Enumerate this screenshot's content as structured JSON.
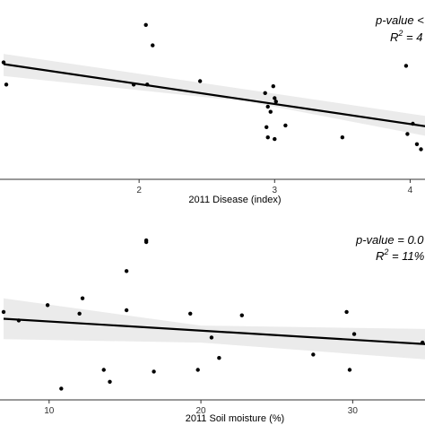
{
  "colors": {
    "points": "#000000",
    "fit_line": "#000000",
    "ci_band": "#ebebeb",
    "axis": "#333333"
  },
  "chart_data": [
    {
      "type": "scatter",
      "title": "",
      "xlabel": "2011 Disease (index)",
      "ylabel": "",
      "xlim": [
        1.0,
        4.5
      ],
      "ylim": [
        0.0,
        1.0
      ],
      "xticks": [
        2,
        3,
        4
      ],
      "xtick_labels": [
        "2",
        "3",
        "4"
      ],
      "annotation_pvalue": "p-value <",
      "annotation_r2_prefix": "R",
      "annotation_r2_sup": "2",
      "annotation_r2_suffix": " = 4",
      "points": [
        {
          "x": 1.0,
          "y": 0.66
        },
        {
          "x": 1.02,
          "y": 0.53
        },
        {
          "x": 1.96,
          "y": 0.53
        },
        {
          "x": 2.06,
          "y": 0.53
        },
        {
          "x": 2.05,
          "y": 0.88
        },
        {
          "x": 2.1,
          "y": 0.76
        },
        {
          "x": 2.45,
          "y": 0.55
        },
        {
          "x": 2.93,
          "y": 0.48
        },
        {
          "x": 2.95,
          "y": 0.4
        },
        {
          "x": 2.97,
          "y": 0.37
        },
        {
          "x": 2.99,
          "y": 0.52
        },
        {
          "x": 3.0,
          "y": 0.45
        },
        {
          "x": 3.01,
          "y": 0.43
        },
        {
          "x": 2.94,
          "y": 0.28
        },
        {
          "x": 2.95,
          "y": 0.22
        },
        {
          "x": 3.0,
          "y": 0.21
        },
        {
          "x": 3.08,
          "y": 0.29
        },
        {
          "x": 3.5,
          "y": 0.22
        },
        {
          "x": 3.97,
          "y": 0.64
        },
        {
          "x": 3.98,
          "y": 0.24
        },
        {
          "x": 4.02,
          "y": 0.3
        },
        {
          "x": 4.05,
          "y": 0.18
        },
        {
          "x": 4.08,
          "y": 0.15
        }
      ],
      "fit": {
        "x": [
          1.0,
          4.5
        ],
        "y": [
          0.65,
          0.24
        ]
      },
      "ci_band": {
        "x": [
          1.0,
          2.8,
          4.5
        ],
        "upper": [
          0.71,
          0.5,
          0.3
        ],
        "lower": [
          0.58,
          0.43,
          0.17
        ]
      }
    },
    {
      "type": "scatter",
      "title": "",
      "xlabel": "2011 Soil moisture (%)",
      "ylabel": "",
      "xlim": [
        7.0,
        35.0
      ],
      "ylim": [
        0.0,
        1.0
      ],
      "xticks": [
        10,
        20,
        30
      ],
      "xtick_labels": [
        "10",
        "20",
        "30"
      ],
      "annotation_pvalue": "p-value = 0.0",
      "annotation_r2_prefix": "R",
      "annotation_r2_sup": "2",
      "annotation_r2_suffix": " = 11%",
      "points": [
        {
          "x": 7.0,
          "y": 0.49
        },
        {
          "x": 8.0,
          "y": 0.44
        },
        {
          "x": 9.9,
          "y": 0.53
        },
        {
          "x": 10.8,
          "y": 0.04
        },
        {
          "x": 12.0,
          "y": 0.48
        },
        {
          "x": 12.2,
          "y": 0.57
        },
        {
          "x": 13.6,
          "y": 0.15
        },
        {
          "x": 14.0,
          "y": 0.08
        },
        {
          "x": 15.1,
          "y": 0.73
        },
        {
          "x": 15.1,
          "y": 0.5
        },
        {
          "x": 16.4,
          "y": 0.91
        },
        {
          "x": 16.4,
          "y": 0.9
        },
        {
          "x": 16.9,
          "y": 0.14
        },
        {
          "x": 19.3,
          "y": 0.48
        },
        {
          "x": 19.8,
          "y": 0.15
        },
        {
          "x": 20.7,
          "y": 0.34
        },
        {
          "x": 21.2,
          "y": 0.22
        },
        {
          "x": 22.7,
          "y": 0.47
        },
        {
          "x": 27.4,
          "y": 0.24
        },
        {
          "x": 29.6,
          "y": 0.49
        },
        {
          "x": 29.8,
          "y": 0.15
        },
        {
          "x": 30.1,
          "y": 0.36
        },
        {
          "x": 34.6,
          "y": 0.31
        },
        {
          "x": 34.9,
          "y": 0.17
        }
      ],
      "fit": {
        "x": [
          7.0,
          35.0
        ],
        "y": [
          0.45,
          0.3
        ]
      },
      "ci_band": {
        "x": [
          7.0,
          20.0,
          35.0
        ],
        "upper": [
          0.57,
          0.41,
          0.39
        ],
        "lower": [
          0.33,
          0.31,
          0.21
        ]
      }
    }
  ]
}
